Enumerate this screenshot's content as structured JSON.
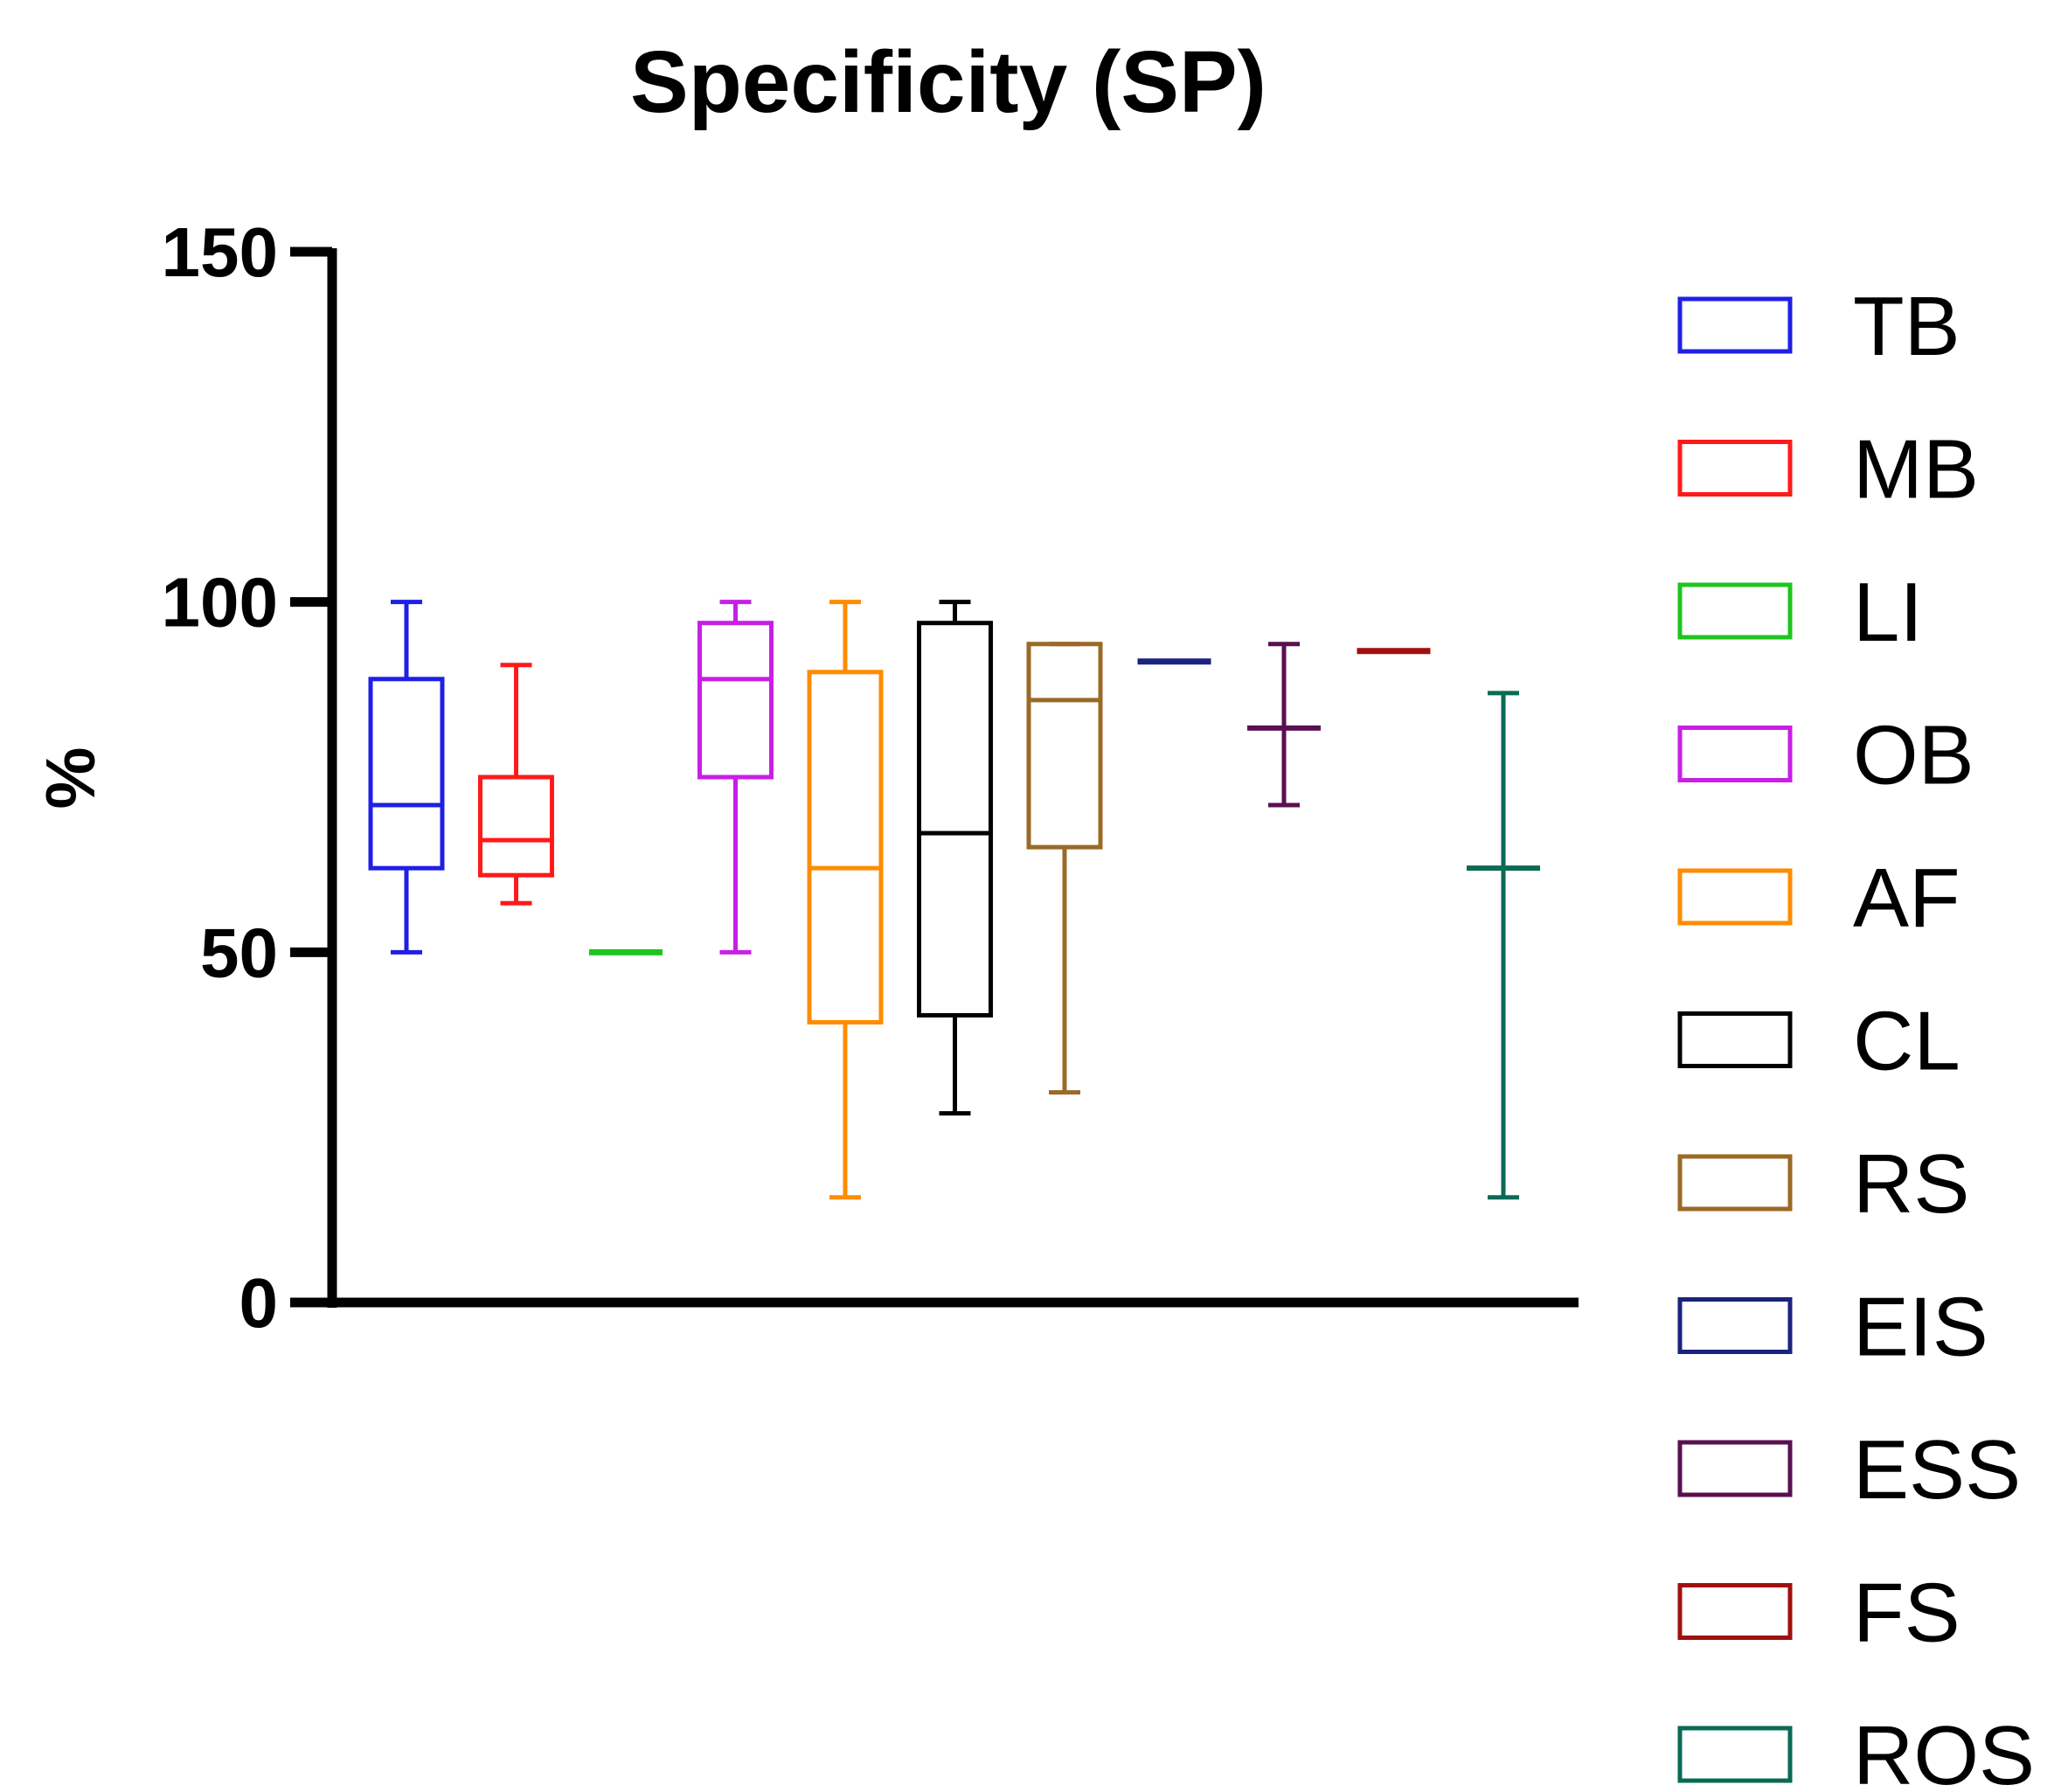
{
  "chart_data": {
    "type": "box",
    "title": "Specificity (SP)",
    "xlabel": "",
    "ylabel": "%",
    "ylim": [
      0,
      150
    ],
    "yticks": [
      0,
      50,
      100,
      150
    ],
    "legend_position": "right",
    "series": [
      {
        "name": "TB",
        "color": "#1f1fe6",
        "min": 50,
        "q1": 62,
        "median": 71,
        "q3": 89,
        "max": 100
      },
      {
        "name": "MB",
        "color": "#ff1a1a",
        "min": 57,
        "q1": 61,
        "median": 66,
        "q3": 75,
        "max": 91
      },
      {
        "name": "LI",
        "color": "#1fc41f",
        "min": 50,
        "q1": 50,
        "median": 50,
        "q3": 50,
        "max": 50
      },
      {
        "name": "OB",
        "color": "#c81fe6",
        "min": 50,
        "q1": 75,
        "median": 89,
        "q3": 97,
        "max": 100
      },
      {
        "name": "AF",
        "color": "#ff8c00",
        "min": 15,
        "q1": 40,
        "median": 62,
        "q3": 90,
        "max": 100
      },
      {
        "name": "CL",
        "color": "#000000",
        "min": 27,
        "q1": 41,
        "median": 67,
        "q3": 97,
        "max": 100
      },
      {
        "name": "RS",
        "color": "#9a6a26",
        "min": 30,
        "q1": 65,
        "median": 86,
        "q3": 94,
        "max": 94
      },
      {
        "name": "EIS",
        "color": "#1a237e",
        "min": 91.5,
        "q1": 91.5,
        "median": 91.5,
        "q3": 91.5,
        "max": 91.5
      },
      {
        "name": "ESS",
        "color": "#5a1050",
        "min": 71,
        "q1": 82,
        "median": 82,
        "q3": 82,
        "max": 94
      },
      {
        "name": "FS",
        "color": "#a01010",
        "min": 93,
        "q1": 93,
        "median": 93,
        "q3": 93,
        "max": 93
      },
      {
        "name": "ROS",
        "color": "#0a6a55",
        "min": 15,
        "q1": 62,
        "median": 62,
        "q3": 62,
        "max": 87
      }
    ]
  }
}
